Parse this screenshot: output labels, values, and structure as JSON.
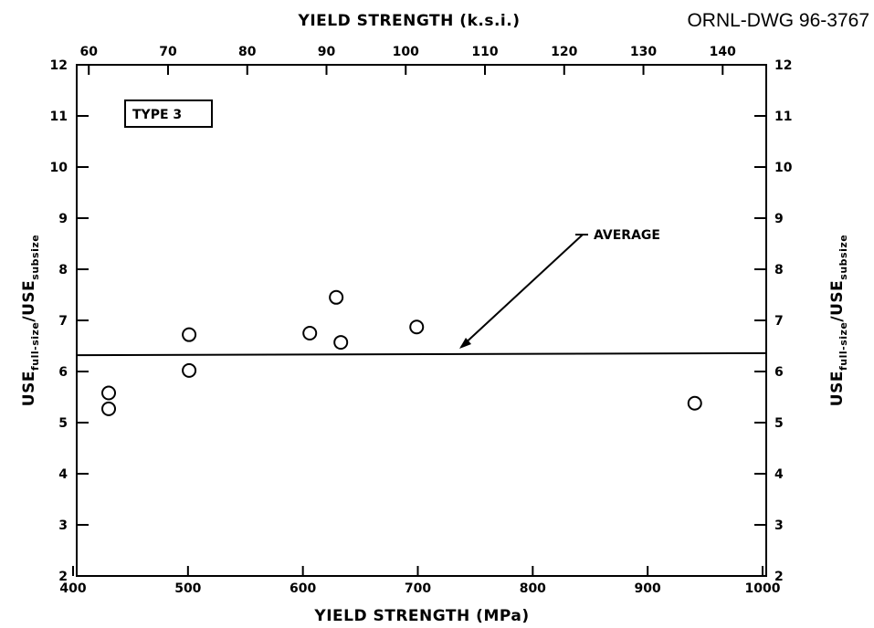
{
  "drawing_id": "ORNL-DWG 96-3767",
  "chart_data": {
    "type": "scatter",
    "title": "",
    "xlabel": "YIELD STRENGTH (MPa)",
    "x2label": "YIELD STRENGTH (k.s.i.)",
    "ylabel": {
      "base": "USE",
      "sub1": "full-size",
      "slash": "/",
      "base2": "USE",
      "sub2": "subsize"
    },
    "xlim": [
      400,
      1000
    ],
    "ylim": [
      2,
      12
    ],
    "x_ticks": [
      "400",
      "500",
      "600",
      "700",
      "800",
      "900",
      "1000"
    ],
    "x2_ticks": [
      "60",
      "70",
      "80",
      "90",
      "100",
      "110",
      "120",
      "130",
      "140"
    ],
    "y_ticks": [
      "2",
      "3",
      "4",
      "5",
      "6",
      "7",
      "8",
      "9",
      "10",
      "11",
      "12"
    ],
    "y_right_ticks": [
      "2",
      "3",
      "4",
      "5",
      "6",
      "7",
      "8",
      "9",
      "10",
      "11",
      "12"
    ],
    "grid": false,
    "legend_box": "TYPE 3",
    "points": [
      {
        "x": 431,
        "y": 5.58
      },
      {
        "x": 431,
        "y": 5.27
      },
      {
        "x": 501,
        "y": 6.72
      },
      {
        "x": 501,
        "y": 6.02
      },
      {
        "x": 606,
        "y": 6.75
      },
      {
        "x": 629,
        "y": 7.45
      },
      {
        "x": 633,
        "y": 6.57
      },
      {
        "x": 699,
        "y": 6.87
      },
      {
        "x": 941,
        "y": 5.38
      }
    ],
    "average_line": {
      "label": "AVERAGE",
      "y_start": 6.32,
      "y_end": 6.36
    }
  }
}
